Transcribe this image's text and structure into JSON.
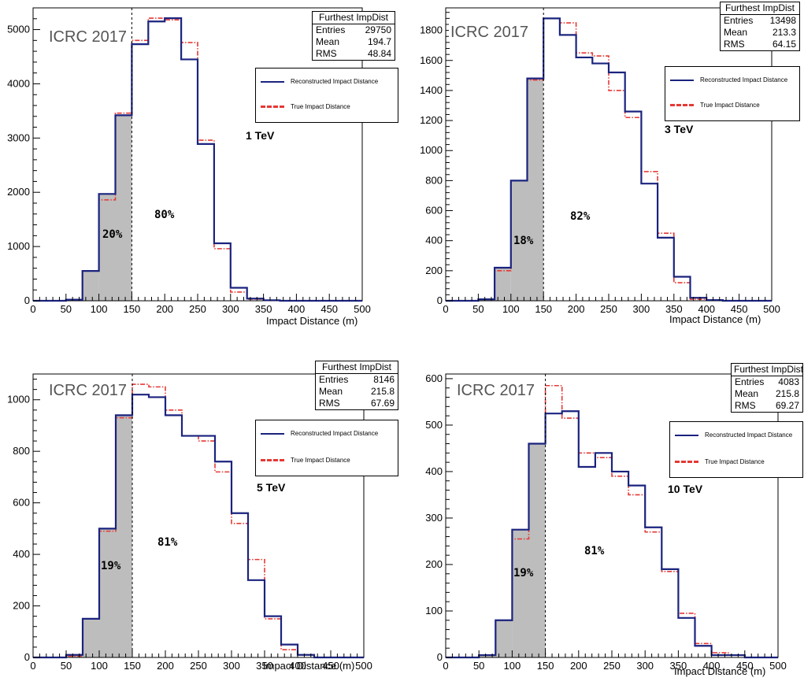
{
  "colors": {
    "reconstructed": "#1a237e",
    "true": "#e53935",
    "shade": "#bdbdbd"
  },
  "panels": [
    {
      "watermark": "ICRC 2017",
      "energy": "1 TeV",
      "pct_left": "20%",
      "pct_right": "80%",
      "stats": {
        "title": "Furthest ImpDist",
        "entries_label": "Entries",
        "entries": "29750",
        "mean_label": "Mean",
        "mean": "194.7",
        "rms_label": "RMS",
        "rms": "48.84"
      },
      "legend": {
        "reco": "Reconstructed Impact Distance",
        "true": "True Impact Distance"
      },
      "xlabel": "Impact Distance (m)"
    },
    {
      "watermark": "ICRC 2017",
      "energy": "3 TeV",
      "pct_left": "18%",
      "pct_right": "82%",
      "stats": {
        "title": "Furthest ImpDist",
        "entries_label": "Entries",
        "entries": "13498",
        "mean_label": "Mean",
        "mean": "213.3",
        "rms_label": "RMS",
        "rms": "64.15"
      },
      "legend": {
        "reco": "Reconstructed Impact Distance",
        "true": "True Impact Distance"
      },
      "xlabel": "Impact Distance (m)"
    },
    {
      "watermark": "ICRC 2017",
      "energy": "5 TeV",
      "pct_left": "19%",
      "pct_right": "81%",
      "stats": {
        "title": "Furthest ImpDist",
        "entries_label": "Entries",
        "entries": "8146",
        "mean_label": "Mean",
        "mean": "215.8",
        "rms_label": "RMS",
        "rms": "67.69"
      },
      "legend": {
        "reco": "Reconstructed Impact Distance",
        "true": "True Impact Distance"
      },
      "xlabel": "Impact Distance (m)"
    },
    {
      "watermark": "ICRC 2017",
      "energy": "10 TeV",
      "pct_left": "19%",
      "pct_right": "81%",
      "stats": {
        "title": "Furthest ImpDist",
        "entries_label": "Entries",
        "entries": "4083",
        "mean_label": "Mean",
        "mean": "215.8",
        "rms_label": "RMS",
        "rms": "69.27"
      },
      "legend": {
        "reco": "Reconstructed Impact Distance",
        "true": "True Impact Distance"
      },
      "xlabel": "Impact Distance (m)"
    }
  ],
  "chart_data": [
    {
      "type": "bar",
      "histogram": true,
      "bin_edges": [
        0,
        25,
        50,
        75,
        100,
        125,
        150,
        175,
        200,
        225,
        250,
        275,
        300,
        325,
        350,
        375,
        400,
        425,
        450,
        475,
        500
      ],
      "xlim": [
        0,
        500
      ],
      "ylim": [
        0,
        5400
      ],
      "yticks": [
        0,
        1000,
        2000,
        3000,
        4000,
        5000
      ],
      "xticks": [
        0,
        50,
        100,
        150,
        200,
        250,
        300,
        350,
        400,
        450,
        500
      ],
      "xlabel": "Impact Distance (m)",
      "cut": 150,
      "series": [
        {
          "name": "Reconstructed Impact Distance",
          "values": [
            0,
            0,
            20,
            550,
            1970,
            3420,
            4730,
            5150,
            5210,
            4450,
            2890,
            1060,
            240,
            40,
            10,
            0,
            0,
            0,
            0,
            0
          ]
        },
        {
          "name": "True Impact Distance",
          "values": [
            0,
            0,
            20,
            550,
            1860,
            3460,
            4800,
            5210,
            5180,
            4760,
            2960,
            960,
            160,
            30,
            10,
            0,
            0,
            0,
            0,
            0
          ]
        }
      ]
    },
    {
      "type": "bar",
      "histogram": true,
      "bin_edges": [
        0,
        25,
        50,
        75,
        100,
        125,
        150,
        175,
        200,
        225,
        250,
        275,
        300,
        325,
        350,
        375,
        400,
        425,
        450,
        475,
        500
      ],
      "xlim": [
        0,
        500
      ],
      "ylim": [
        0,
        1950
      ],
      "yticks": [
        0,
        200,
        400,
        600,
        800,
        1000,
        1200,
        1400,
        1600,
        1800
      ],
      "xticks": [
        0,
        50,
        100,
        150,
        200,
        250,
        300,
        350,
        400,
        450,
        500
      ],
      "xlabel": "Impact Distance (m)",
      "cut": 150,
      "series": [
        {
          "name": "Reconstructed Impact Distance",
          "values": [
            0,
            0,
            10,
            220,
            800,
            1480,
            1880,
            1770,
            1620,
            1580,
            1520,
            1260,
            780,
            420,
            160,
            20,
            5,
            0,
            0,
            0
          ]
        },
        {
          "name": "True Impact Distance",
          "values": [
            0,
            0,
            10,
            200,
            800,
            1470,
            1880,
            1850,
            1650,
            1630,
            1400,
            1220,
            860,
            450,
            120,
            10,
            5,
            0,
            0,
            0
          ]
        }
      ]
    },
    {
      "type": "bar",
      "histogram": true,
      "bin_edges": [
        0,
        25,
        50,
        75,
        100,
        125,
        150,
        175,
        200,
        225,
        250,
        275,
        300,
        325,
        350,
        375,
        400,
        425,
        450,
        475,
        500
      ],
      "xlim": [
        0,
        500
      ],
      "ylim": [
        0,
        1100
      ],
      "yticks": [
        0,
        200,
        400,
        600,
        800,
        1000
      ],
      "xticks": [
        0,
        50,
        100,
        150,
        200,
        250,
        300,
        350,
        400,
        450,
        500
      ],
      "xlabel": "Impact Distance (m)",
      "cut": 150,
      "series": [
        {
          "name": "Reconstructed Impact Distance",
          "values": [
            0,
            0,
            10,
            150,
            500,
            940,
            1020,
            1010,
            940,
            860,
            860,
            760,
            560,
            300,
            160,
            50,
            10,
            0,
            0,
            0
          ]
        },
        {
          "name": "True Impact Distance",
          "values": [
            0,
            0,
            5,
            150,
            490,
            930,
            1060,
            1050,
            960,
            860,
            840,
            720,
            520,
            380,
            150,
            30,
            10,
            0,
            0,
            0
          ]
        }
      ]
    },
    {
      "type": "bar",
      "histogram": true,
      "bin_edges": [
        0,
        25,
        50,
        75,
        100,
        125,
        150,
        175,
        200,
        225,
        250,
        275,
        300,
        325,
        350,
        375,
        400,
        425,
        450,
        475,
        500
      ],
      "xlim": [
        0,
        500
      ],
      "ylim": [
        0,
        610
      ],
      "yticks": [
        0,
        100,
        200,
        300,
        400,
        500,
        600
      ],
      "xticks": [
        0,
        50,
        100,
        150,
        200,
        250,
        300,
        350,
        400,
        450,
        500
      ],
      "xlabel": "Impact Distance (m)",
      "cut": 150,
      "series": [
        {
          "name": "Reconstructed Impact Distance",
          "values": [
            0,
            0,
            5,
            80,
            275,
            460,
            525,
            530,
            410,
            440,
            400,
            370,
            280,
            190,
            85,
            25,
            5,
            5,
            0,
            0
          ]
        },
        {
          "name": "True Impact Distance",
          "values": [
            0,
            0,
            5,
            80,
            255,
            460,
            585,
            515,
            440,
            430,
            390,
            350,
            270,
            185,
            95,
            30,
            10,
            5,
            0,
            0
          ]
        }
      ]
    }
  ]
}
